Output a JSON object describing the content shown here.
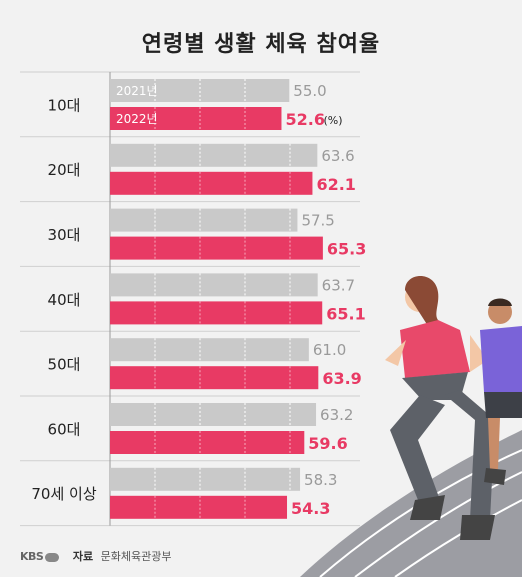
{
  "title": "연령별 생활 체육 참여율",
  "unit": "(%)",
  "source": {
    "logo": "KBS",
    "label": "자료",
    "value": "문화체육관광부"
  },
  "colors": {
    "series_2021": "#c9c9c9",
    "series_2022": "#e83a64",
    "background": "#f2f2f2"
  },
  "chart_data": {
    "type": "bar",
    "orientation": "horizontal",
    "title": "연령별 생활 체육 참여율",
    "categories": [
      "10대",
      "20대",
      "30대",
      "40대",
      "50대",
      "60대",
      "70세 이상"
    ],
    "series": [
      {
        "name": "2021년",
        "values": [
          55.0,
          63.6,
          57.5,
          63.7,
          61.0,
          63.2,
          58.3
        ]
      },
      {
        "name": "2022년",
        "values": [
          52.6,
          62.1,
          65.3,
          65.1,
          63.9,
          59.6,
          54.3
        ]
      }
    ],
    "unit": "%",
    "grid": true
  }
}
